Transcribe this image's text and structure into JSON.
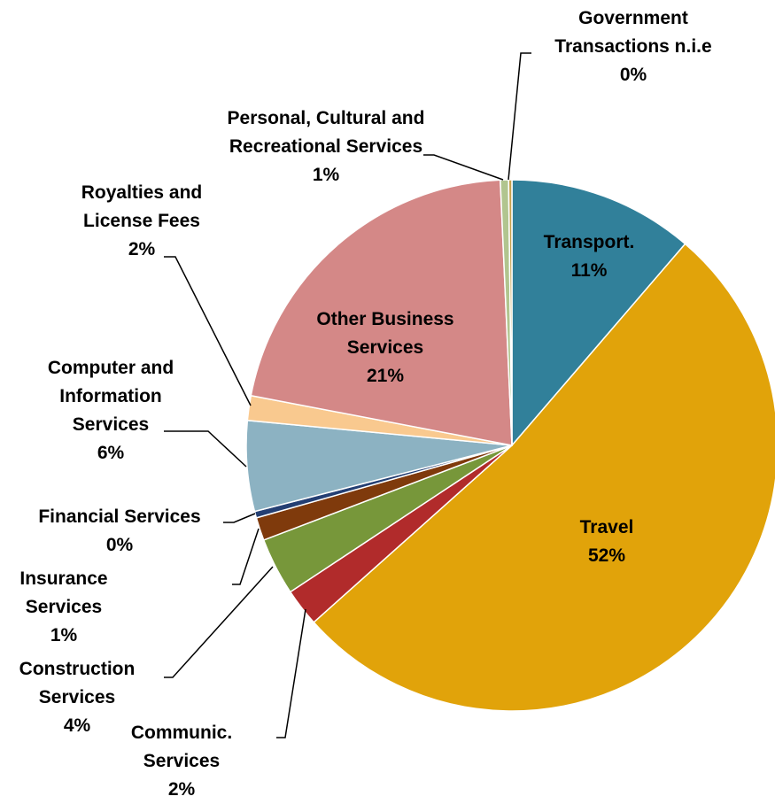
{
  "chart_data": {
    "type": "pie",
    "categories": [
      "Transport.",
      "Travel",
      "Communic. Services",
      "Construction Services",
      "Insurance Services",
      "Financial Services",
      "Computer and Information Services",
      "Royalties and License Fees",
      "Other Business Services",
      "Personal, Cultural and Recreational Services",
      "Government Transactions n.i.e"
    ],
    "values": [
      11.3,
      52.1,
      2.3,
      3.5,
      1.4,
      0.4,
      5.5,
      1.5,
      21.3,
      0.5,
      0.2
    ],
    "value_labels": [
      "11%",
      "52%",
      "2%",
      "4%",
      "1%",
      "0%",
      "6%",
      "2%",
      "21%",
      "1%",
      "0%"
    ],
    "colors": [
      "#31809a",
      "#e1a30a",
      "#b12b2b",
      "#77973a",
      "#7f3a0c",
      "#243f73",
      "#8cb2c2",
      "#f9c98f",
      "#d48887",
      "#b1c58f",
      "#c7a04b"
    ]
  }
}
